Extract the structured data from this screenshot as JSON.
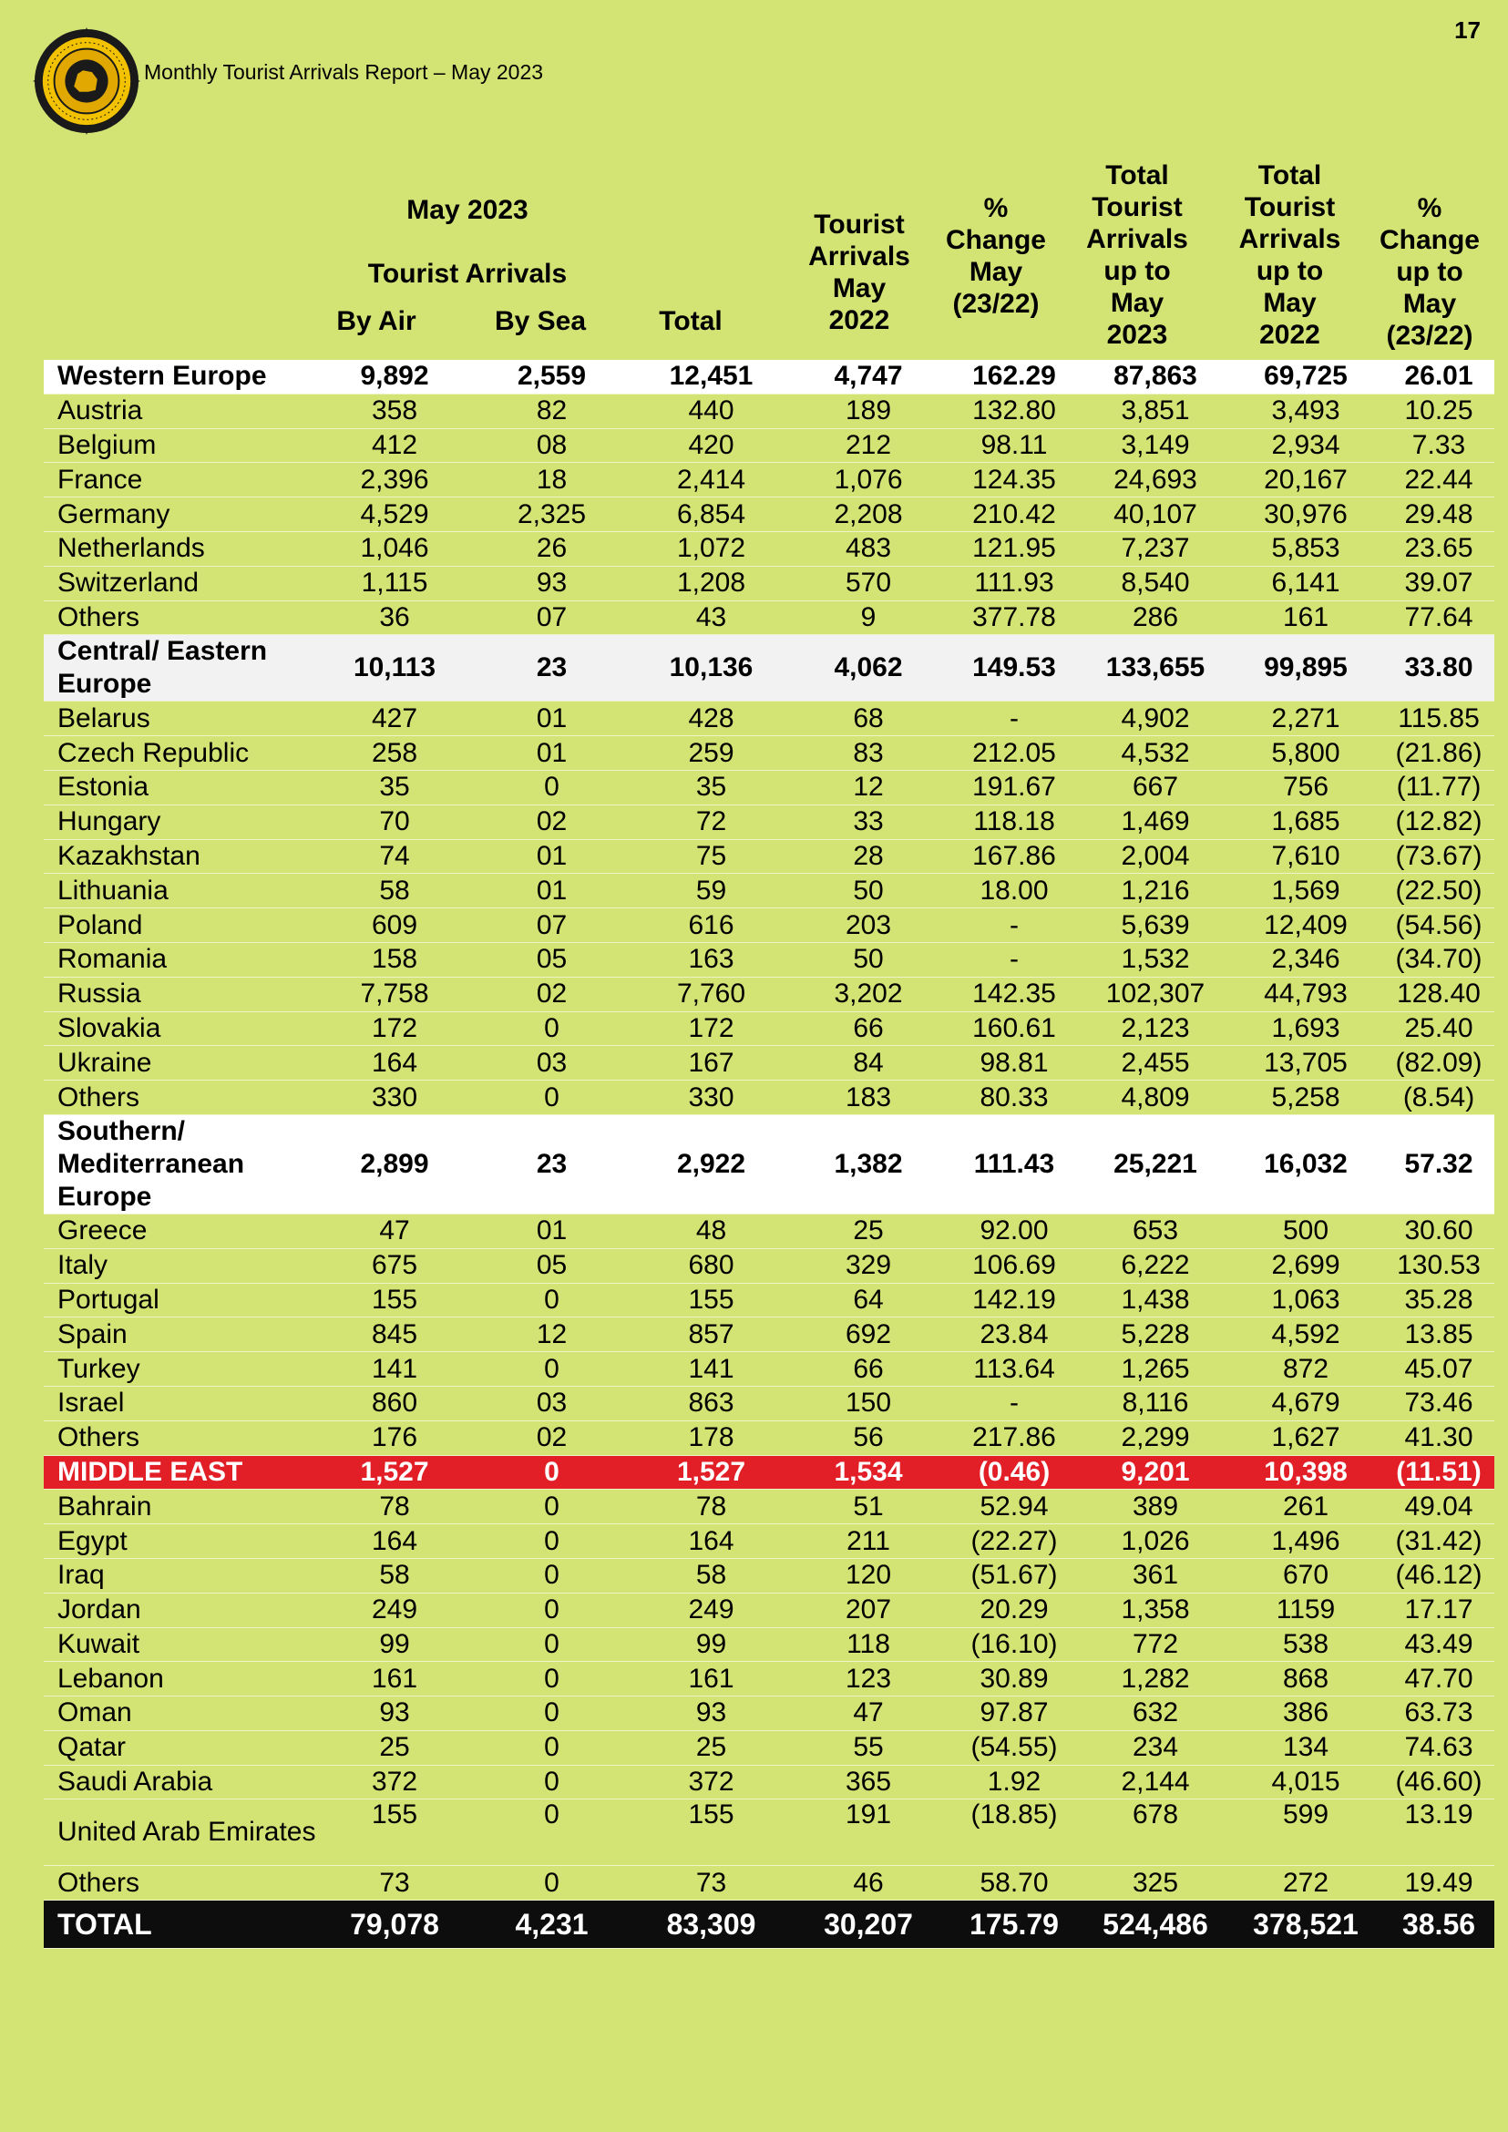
{
  "page_number": "17",
  "report_title": "Monthly Tourist Arrivals Report – May 2023",
  "columns": {
    "group_top": "May 2023",
    "group_sub": "Tourist Arrivals",
    "by_air": "By Air",
    "by_sea": "By Sea",
    "total": "Total",
    "tourist_arrivals_may_2022": [
      "Tourist",
      "Arrivals",
      "May",
      "2022"
    ],
    "pct_change_may": [
      "%",
      "Change",
      "May",
      "(23/22)"
    ],
    "total_upto_2023": [
      "Total",
      "Tourist",
      "Arrivals",
      "up to",
      "May",
      "2023"
    ],
    "total_upto_2022": [
      "Total",
      "Tourist",
      "Arrivals",
      "up to",
      "May",
      "2022"
    ],
    "pct_change_upto": [
      "%",
      "Change",
      "up to",
      "May",
      "(23/22)"
    ]
  },
  "rows": [
    {
      "kind": "region",
      "style": "white",
      "name": "Western Europe",
      "v": [
        "9,892",
        "2,559",
        "12,451",
        "4,747",
        "162.29",
        "87,863",
        "69,725",
        "26.01"
      ]
    },
    {
      "kind": "country",
      "name": "Austria",
      "v": [
        "358",
        "82",
        "440",
        "189",
        "132.80",
        "3,851",
        "3,493",
        "10.25"
      ]
    },
    {
      "kind": "country",
      "name": "Belgium",
      "v": [
        "412",
        "08",
        "420",
        "212",
        "98.11",
        "3,149",
        "2,934",
        "7.33"
      ]
    },
    {
      "kind": "country",
      "name": "France",
      "v": [
        "2,396",
        "18",
        "2,414",
        "1,076",
        "124.35",
        "24,693",
        "20,167",
        "22.44"
      ]
    },
    {
      "kind": "country",
      "name": "Germany",
      "v": [
        "4,529",
        "2,325",
        "6,854",
        "2,208",
        "210.42",
        "40,107",
        "30,976",
        "29.48"
      ]
    },
    {
      "kind": "country",
      "name": "Netherlands",
      "v": [
        "1,046",
        "26",
        "1,072",
        "483",
        "121.95",
        "7,237",
        "5,853",
        "23.65"
      ]
    },
    {
      "kind": "country",
      "name": "Switzerland",
      "v": [
        "1,115",
        "93",
        "1,208",
        "570",
        "111.93",
        "8,540",
        "6,141",
        "39.07"
      ]
    },
    {
      "kind": "country",
      "name": "Others",
      "v": [
        "36",
        "07",
        "43",
        "9",
        "377.78",
        "286",
        "161",
        "77.64"
      ]
    },
    {
      "kind": "region",
      "style": "grey",
      "name": "Central/ Eastern Europe",
      "v": [
        "10,113",
        "23",
        "10,136",
        "4,062",
        "149.53",
        "133,655",
        "99,895",
        "33.80"
      ]
    },
    {
      "kind": "country",
      "name": "Belarus",
      "v": [
        "427",
        "01",
        "428",
        "68",
        "-",
        "4,902",
        "2,271",
        "115.85"
      ]
    },
    {
      "kind": "country",
      "name": "Czech Republic",
      "v": [
        "258",
        "01",
        "259",
        "83",
        "212.05",
        "4,532",
        "5,800",
        "(21.86)"
      ]
    },
    {
      "kind": "country",
      "name": "Estonia",
      "v": [
        "35",
        "0",
        "35",
        "12",
        "191.67",
        "667",
        "756",
        "(11.77)"
      ]
    },
    {
      "kind": "country",
      "name": "Hungary",
      "v": [
        "70",
        "02",
        "72",
        "33",
        "118.18",
        "1,469",
        "1,685",
        "(12.82)"
      ]
    },
    {
      "kind": "country",
      "name": "Kazakhstan",
      "v": [
        "74",
        "01",
        "75",
        "28",
        "167.86",
        "2,004",
        "7,610",
        "(73.67)"
      ]
    },
    {
      "kind": "country",
      "name": "Lithuania",
      "v": [
        "58",
        "01",
        "59",
        "50",
        "18.00",
        "1,216",
        "1,569",
        "(22.50)"
      ]
    },
    {
      "kind": "country",
      "name": "Poland",
      "v": [
        "609",
        "07",
        "616",
        "203",
        "-",
        "5,639",
        "12,409",
        "(54.56)"
      ]
    },
    {
      "kind": "country",
      "name": "Romania",
      "v": [
        "158",
        "05",
        "163",
        "50",
        "-",
        "1,532",
        "2,346",
        "(34.70)"
      ]
    },
    {
      "kind": "country",
      "name": "Russia",
      "v": [
        "7,758",
        "02",
        "7,760",
        "3,202",
        "142.35",
        "102,307",
        "44,793",
        "128.40"
      ]
    },
    {
      "kind": "country",
      "name": "Slovakia",
      "v": [
        "172",
        "0",
        "172",
        "66",
        "160.61",
        "2,123",
        "1,693",
        "25.40"
      ]
    },
    {
      "kind": "country",
      "name": "Ukraine",
      "v": [
        "164",
        "03",
        "167",
        "84",
        "98.81",
        "2,455",
        "13,705",
        "(82.09)"
      ]
    },
    {
      "kind": "country",
      "name": "Others",
      "v": [
        "330",
        "0",
        "330",
        "183",
        "80.33",
        "4,809",
        "5,258",
        "(8.54)"
      ]
    },
    {
      "kind": "region",
      "style": "white",
      "name": "Southern/ Mediterranean Europe",
      "v": [
        "2,899",
        "23",
        "2,922",
        "1,382",
        "111.43",
        "25,221",
        "16,032",
        "57.32"
      ]
    },
    {
      "kind": "country",
      "name": "Greece",
      "v": [
        "47",
        "01",
        "48",
        "25",
        "92.00",
        "653",
        "500",
        "30.60"
      ]
    },
    {
      "kind": "country",
      "name": "Italy",
      "v": [
        "675",
        "05",
        "680",
        "329",
        "106.69",
        "6,222",
        "2,699",
        "130.53"
      ]
    },
    {
      "kind": "country",
      "name": "Portugal",
      "v": [
        "155",
        "0",
        "155",
        "64",
        "142.19",
        "1,438",
        "1,063",
        "35.28"
      ]
    },
    {
      "kind": "country",
      "name": "Spain",
      "v": [
        "845",
        "12",
        "857",
        "692",
        "23.84",
        "5,228",
        "4,592",
        "13.85"
      ]
    },
    {
      "kind": "country",
      "name": "Turkey",
      "v": [
        "141",
        "0",
        "141",
        "66",
        "113.64",
        "1,265",
        "872",
        "45.07"
      ]
    },
    {
      "kind": "country",
      "name": "Israel",
      "v": [
        "860",
        "03",
        "863",
        "150",
        "-",
        "8,116",
        "4,679",
        "73.46"
      ]
    },
    {
      "kind": "country",
      "name": "Others",
      "v": [
        "176",
        "02",
        "178",
        "56",
        "217.86",
        "2,299",
        "1,627",
        "41.30"
      ]
    },
    {
      "kind": "region",
      "style": "red",
      "name": "MIDDLE EAST",
      "v": [
        "1,527",
        "0",
        "1,527",
        "1,534",
        "(0.46)",
        "9,201",
        "10,398",
        "(11.51)"
      ]
    },
    {
      "kind": "country",
      "name": "Bahrain",
      "v": [
        "78",
        "0",
        "78",
        "51",
        "52.94",
        "389",
        "261",
        "49.04"
      ]
    },
    {
      "kind": "country",
      "name": "Egypt",
      "v": [
        "164",
        "0",
        "164",
        "211",
        "(22.27)",
        "1,026",
        "1,496",
        "(31.42)"
      ]
    },
    {
      "kind": "country",
      "name": "Iraq",
      "v": [
        "58",
        "0",
        "58",
        "120",
        "(51.67)",
        "361",
        "670",
        "(46.12)"
      ]
    },
    {
      "kind": "country",
      "name": "Jordan",
      "v": [
        "249",
        "0",
        "249",
        "207",
        "20.29",
        "1,358",
        "1159",
        "17.17"
      ]
    },
    {
      "kind": "country",
      "name": "Kuwait",
      "v": [
        "99",
        "0",
        "99",
        "118",
        "(16.10)",
        "772",
        "538",
        "43.49"
      ]
    },
    {
      "kind": "country",
      "name": "Lebanon",
      "v": [
        "161",
        "0",
        "161",
        "123",
        "30.89",
        "1,282",
        "868",
        "47.70"
      ]
    },
    {
      "kind": "country",
      "name": "Oman",
      "v": [
        "93",
        "0",
        "93",
        "47",
        "97.87",
        "632",
        "386",
        "63.73"
      ]
    },
    {
      "kind": "country",
      "name": "Qatar",
      "v": [
        "25",
        "0",
        "25",
        "55",
        "(54.55)",
        "234",
        "134",
        "74.63"
      ]
    },
    {
      "kind": "country",
      "name": "Saudi Arabia",
      "v": [
        "372",
        "0",
        "372",
        "365",
        "1.92",
        "2,144",
        "4,015",
        "(46.60)"
      ]
    },
    {
      "kind": "country",
      "name": "United Arab Emirates",
      "v": [
        "155",
        "0",
        "155",
        "191",
        "(18.85)",
        "678",
        "599",
        "13.19"
      ]
    },
    {
      "kind": "country",
      "name": "Others",
      "v": [
        "73",
        "0",
        "73",
        "46",
        "58.70",
        "325",
        "272",
        "19.49"
      ]
    },
    {
      "kind": "total",
      "name": "TOTAL",
      "v": [
        "79,078",
        "4,231",
        "83,309",
        "30,207",
        "175.79",
        "524,486",
        "378,521",
        "38.56"
      ]
    }
  ]
}
